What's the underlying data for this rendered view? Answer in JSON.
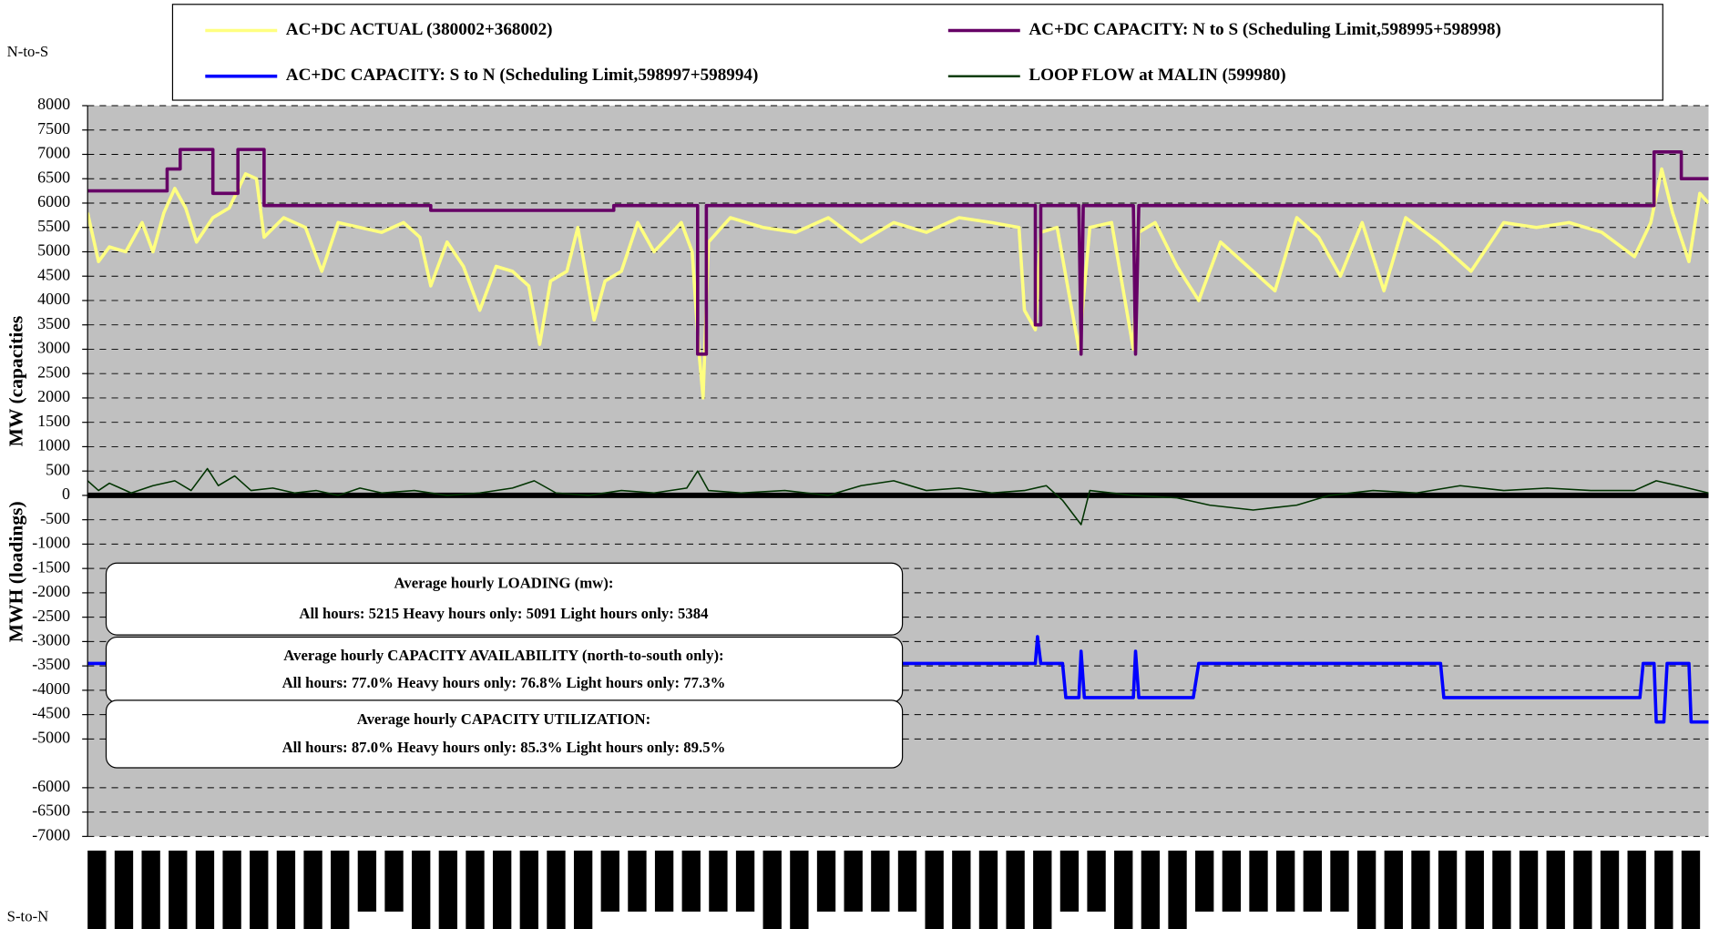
{
  "chart_data": {
    "type": "line",
    "top_label": "N-to-S",
    "bottom_label": "S-to-N",
    "ylabel_top": "MW (capacities",
    "ylabel_bottom": "MWH (loadings)",
    "xlim": [
      0,
      744
    ],
    "ylim": [
      -7000,
      8000
    ],
    "yticks": [
      8000,
      7500,
      7000,
      6500,
      6000,
      5500,
      5000,
      4500,
      4000,
      3500,
      3000,
      2500,
      2000,
      1500,
      1000,
      500,
      0,
      -500,
      -1000,
      -1500,
      -2000,
      -2500,
      -3000,
      -3500,
      -4000,
      -4500,
      -5000,
      -6000,
      -6500,
      -7000
    ],
    "grid": true,
    "background": "#c0c0c0",
    "series": [
      {
        "name": "AC+DC ACTUAL (380002+368002)",
        "color": "#ffff80",
        "width": 3,
        "x": [
          0,
          5,
          10,
          17.5,
          25,
          30,
          35,
          40,
          45,
          50,
          57.5,
          65,
          72.5,
          77.5,
          81,
          90,
          100,
          107.5,
          115,
          125,
          135,
          145,
          152.5,
          157.5,
          165,
          172.5,
          180,
          187.5,
          195,
          202.5,
          207.5,
          212.5,
          220,
          225,
          232.5,
          237.5,
          245,
          252.5,
          260,
          272.5,
          277.5,
          280.5,
          282.5,
          285,
          295,
          310,
          325,
          340,
          355,
          370,
          385,
          400,
          415,
          427.5,
          430,
          435,
          437.5,
          445,
          455,
          460,
          470,
          480,
          482.5,
          490,
          500,
          510,
          520,
          535,
          545,
          555,
          565,
          575,
          585,
          595,
          605,
          620,
          635,
          650,
          665,
          680,
          695,
          710,
          717.5,
          722.5,
          727.5,
          735,
          740,
          744
        ],
        "values": [
          5800,
          4800,
          5100,
          5000,
          5600,
          5000,
          5800,
          6300,
          5900,
          5200,
          5700,
          5900,
          6600,
          6500,
          5300,
          5700,
          5500,
          4600,
          5600,
          5500,
          5400,
          5600,
          5300,
          4300,
          5200,
          4700,
          3800,
          4700,
          4600,
          4300,
          3100,
          4400,
          4600,
          5500,
          3600,
          4400,
          4600,
          5600,
          5000,
          5600,
          5000,
          3000,
          2000,
          5200,
          5700,
          5500,
          5400,
          5700,
          5200,
          5600,
          5400,
          5700,
          5600,
          5500,
          3800,
          3400,
          5400,
          5500,
          3000,
          5500,
          5600,
          3000,
          5400,
          5600,
          4700,
          4000,
          5200,
          4600,
          4200,
          5700,
          5300,
          4500,
          5600,
          4200,
          5700,
          5200,
          4600,
          5600,
          5500,
          5600,
          5400,
          4900,
          5600,
          6700,
          5800,
          4800,
          6200,
          6000
        ]
      },
      {
        "name": "AC+DC CAPACITY: N to S (Scheduling Limit,598995+598998)",
        "color": "#660066",
        "width": 3,
        "x": [
          0,
          36.5,
          36.5,
          42.5,
          42.5,
          57.5,
          57.5,
          69,
          69,
          81,
          81,
          157.5,
          157.5,
          241.5,
          241.5,
          280,
          280,
          284,
          284,
          435,
          435,
          437.5,
          437.5,
          455,
          456,
          457,
          480,
          481,
          482.5,
          719,
          719,
          731.5,
          731.5,
          744
        ],
        "values": [
          6250,
          6250,
          6700,
          6700,
          7100,
          7100,
          6200,
          6200,
          7100,
          7100,
          5950,
          5950,
          5850,
          5850,
          5950,
          5950,
          2900,
          2900,
          5950,
          5950,
          3500,
          3500,
          5950,
          5950,
          2900,
          5950,
          5950,
          2900,
          5950,
          5950,
          7050,
          7050,
          6500,
          6500
        ]
      },
      {
        "name": "AC+DC CAPACITY: S to N (Scheduling Limit,598997+598994)",
        "color": "#0000ff",
        "width": 3,
        "x": [
          0,
          435,
          436,
          437.5,
          447.5,
          449,
          455,
          456,
          457.5,
          480,
          481,
          482.5,
          507.5,
          510,
          621,
          622.5,
          712.5,
          714,
          719,
          720,
          723.5,
          725,
          735,
          736,
          744
        ],
        "values": [
          -3450,
          -3450,
          -2900,
          -3450,
          -3450,
          -4150,
          -4150,
          -3200,
          -4150,
          -4150,
          -3200,
          -4150,
          -4150,
          -3450,
          -3450,
          -4150,
          -4150,
          -3450,
          -3450,
          -4650,
          -4650,
          -3450,
          -3450,
          -4650,
          -4650
        ]
      },
      {
        "name": "LOOP FLOW at MALIN (599980)",
        "color": "#003300",
        "width": 1.3,
        "x": [
          0,
          5,
          10,
          20,
          30,
          40,
          47.5,
          55,
          60,
          67.5,
          75,
          85,
          95,
          105,
          115,
          125,
          135,
          150,
          165,
          180,
          195,
          205,
          215,
          230,
          245,
          260,
          275,
          280,
          285,
          300,
          320,
          340,
          355,
          370,
          385,
          400,
          415,
          430,
          440,
          447.5,
          456,
          460,
          480,
          500,
          515,
          535,
          555,
          570,
          590,
          610,
          630,
          650,
          670,
          690,
          710,
          720,
          730,
          744
        ],
        "values": [
          300,
          100,
          250,
          50,
          200,
          300,
          100,
          550,
          200,
          400,
          100,
          150,
          50,
          100,
          0,
          150,
          50,
          100,
          0,
          50,
          150,
          300,
          50,
          0,
          100,
          50,
          150,
          500,
          100,
          50,
          100,
          0,
          200,
          300,
          100,
          150,
          50,
          100,
          200,
          -100,
          -600,
          100,
          0,
          -50,
          -200,
          -300,
          -200,
          0,
          100,
          50,
          200,
          100,
          150,
          100,
          100,
          300,
          200,
          50
        ]
      }
    ],
    "annotations": [
      {
        "lines": [
          "Average hourly LOADING (mw):",
          "All hours: 5215  Heavy hours only: 5091  Light hours only: 5384"
        ]
      },
      {
        "lines": [
          "Average hourly CAPACITY AVAILABILITY (north-to-south only):",
          "All hours: 77.0%  Heavy hours only: 76.8%   Light hours only: 77.3%"
        ]
      },
      {
        "lines": [
          "Average hourly CAPACITY UTILIZATION:",
          "All hours: 87.0%  Heavy hours only: 85.3%   Light hours only: 89.5%"
        ]
      }
    ]
  }
}
